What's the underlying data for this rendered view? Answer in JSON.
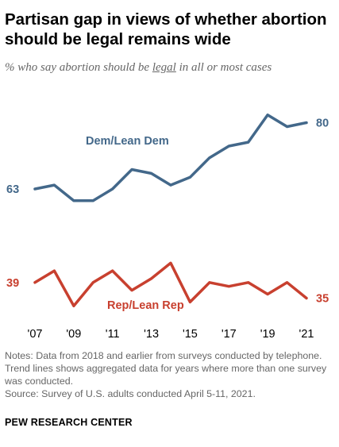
{
  "header": {
    "title": "Partisan gap in views of whether abortion should be legal remains wide",
    "subtitle_pre": "% who say abortion should be ",
    "subtitle_em": "legal",
    "subtitle_post": " in all or most cases"
  },
  "chart_data": {
    "type": "line",
    "x": [
      2007,
      2008,
      2009,
      2010,
      2011,
      2012,
      2013,
      2014,
      2015,
      2016,
      2017,
      2018,
      2019,
      2020,
      2021
    ],
    "x_tick_labels": [
      "'07",
      "'09",
      "'11",
      "'13",
      "'15",
      "'17",
      "'19",
      "'21"
    ],
    "x_tick_values": [
      2007,
      2009,
      2011,
      2013,
      2015,
      2017,
      2019,
      2021
    ],
    "series": [
      {
        "name": "Dem/Lean Dem",
        "color": "#43688a",
        "x": [
          2007,
          2008,
          2009,
          2010,
          2011,
          2012,
          2013,
          2014,
          2015,
          2016,
          2017,
          2018,
          2019,
          2020,
          2021
        ],
        "values": [
          63,
          64,
          60,
          60,
          63,
          68,
          67,
          64,
          66,
          71,
          74,
          75,
          82,
          79,
          80
        ],
        "start_label": "63",
        "end_label": "80"
      },
      {
        "name": "Rep/Lean Rep",
        "color": "#c8402f",
        "x": [
          2007,
          2008,
          2009,
          2010,
          2011,
          2012,
          2013,
          2014,
          2015,
          2016,
          2017,
          2018,
          2019,
          2020,
          2021
        ],
        "values": [
          39,
          42,
          33,
          39,
          42,
          37,
          40,
          44,
          34,
          39,
          38,
          39,
          36,
          39,
          35
        ],
        "start_label": "39",
        "end_label": "35"
      }
    ],
    "title": "Partisan gap in views of whether abortion should be legal remains wide",
    "grid": false,
    "legend": "inline labels"
  },
  "notes": {
    "note": "Notes: Data from 2018 and earlier from surveys conducted by telephone. Trend lines shows aggregated data for years where more than one survey was conducted.",
    "source": "Source: Survey of U.S. adults conducted April 5-11, 2021."
  },
  "branding": {
    "org": "PEW RESEARCH CENTER"
  }
}
